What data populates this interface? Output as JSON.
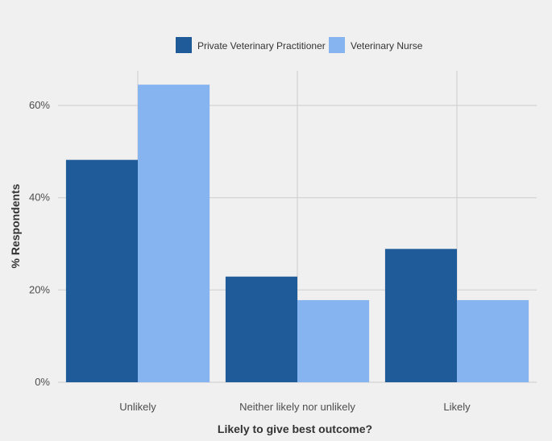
{
  "chart_data": {
    "type": "bar",
    "categories": [
      "Unlikely",
      "Neither likely nor unlikely",
      "Likely"
    ],
    "series": [
      {
        "name": "Private Veterinary Practitioner",
        "values": [
          48.2,
          22.9,
          28.9
        ],
        "color": "#1f5b99"
      },
      {
        "name": "Veterinary Nurse",
        "values": [
          64.5,
          17.8,
          17.8
        ],
        "color": "#86b4f0"
      }
    ],
    "xlabel": "Likely to give best outcome?",
    "ylabel": "% Respondents",
    "yticks": [
      0,
      20,
      40,
      60
    ],
    "ytick_labels": [
      "0%",
      "20%",
      "40%",
      "60%"
    ],
    "ylim": [
      0,
      67.5
    ],
    "grid": true,
    "legend_position": "top"
  }
}
